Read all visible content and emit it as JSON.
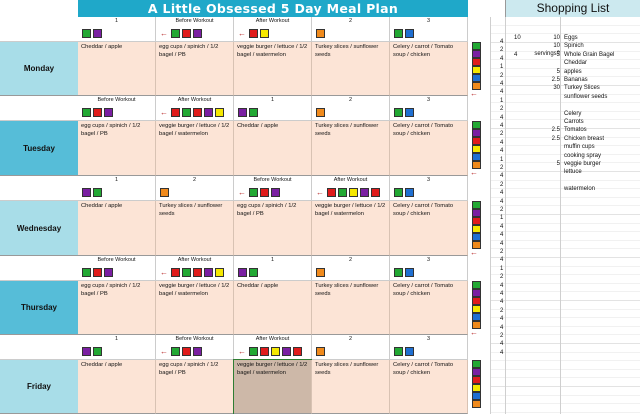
{
  "title": "A Little Obsessed 5 Day Meal Plan",
  "shopping_title": "Shopping List",
  "colors": {
    "G": "#22a833",
    "P": "#7a1fa2",
    "R": "#e01b1b",
    "Y": "#f5e800",
    "B": "#1f6fd1",
    "O": "#f08a1c"
  },
  "days": [
    {
      "name": "Monday",
      "headers": [
        "1",
        "Before Workout",
        "After Workout",
        "2",
        "3"
      ],
      "squares": [
        [
          "G",
          "P"
        ],
        [
          "G",
          "R",
          "P"
        ],
        [
          "R",
          "Y"
        ],
        [
          "O"
        ],
        [
          "G",
          "B"
        ]
      ],
      "arrows": [
        false,
        true,
        true,
        false,
        false
      ],
      "meals": [
        "Cheddar / apple",
        "egg cups / spinich / 1/2 bagel / PB",
        "veggie burger / lettuce / 1/2 bagel / watermelon",
        "Turkey slices / sunflower seeds",
        "Celery / carrot / Tomato soup / chicken"
      ]
    },
    {
      "name": "Tuesday",
      "headers": [
        "Before Workout",
        "After Workout",
        "1",
        "2",
        "3"
      ],
      "squares": [
        [
          "G",
          "R",
          "P"
        ],
        [
          "R",
          "G",
          "R",
          "P",
          "Y"
        ],
        [
          "P",
          "G"
        ],
        [
          "O"
        ],
        [
          "G",
          "B"
        ]
      ],
      "arrows": [
        false,
        true,
        false,
        false,
        false
      ],
      "meals": [
        "egg cups / spinich / 1/2 bagel / PB",
        "veggie burger / lettuce / 1/2 bagel / watermelon",
        "Cheddar / apple",
        "Turkey slices / sunflower seeds",
        "Celery / carrot / Tomato soup / chicken"
      ]
    },
    {
      "name": "Wednesday",
      "headers": [
        "1",
        "2",
        "Before Workout",
        "After Workout",
        "3"
      ],
      "squares": [
        [
          "P",
          "G"
        ],
        [
          "O"
        ],
        [
          "G",
          "R",
          "P"
        ],
        [
          "R",
          "G",
          "Y",
          "P",
          "R"
        ],
        [
          "G",
          "B"
        ]
      ],
      "arrows": [
        false,
        false,
        true,
        true,
        false
      ],
      "meals": [
        "Cheddar / apple",
        "Turkey slices / sunflower seeds",
        "egg cups / spinich / 1/2 bagel / PB",
        "veggie burger / lettuce / 1/2 bagel / watermelon",
        "Celery / carrot / Tomato soup / chicken"
      ]
    },
    {
      "name": "Thursday",
      "headers": [
        "Before Workout",
        "After Workout",
        "1",
        "2",
        "3"
      ],
      "squares": [
        [
          "G",
          "R",
          "P"
        ],
        [
          "R",
          "G",
          "R",
          "P",
          "Y"
        ],
        [
          "P",
          "G"
        ],
        [
          "O"
        ],
        [
          "G",
          "B"
        ]
      ],
      "arrows": [
        false,
        true,
        false,
        false,
        false
      ],
      "meals": [
        "egg cups / spinich / 1/2 bagel / PB",
        "veggie burger / lettuce / 1/2 bagel / watermelon",
        "Cheddar / apple",
        "Turkey slices / sunflower seeds",
        "Celery / carrot / Tomato soup / chicken"
      ]
    },
    {
      "name": "Friday",
      "headers": [
        "1",
        "Before Workout",
        "After Workout",
        "2",
        "3"
      ],
      "squares": [
        [
          "P",
          "G"
        ],
        [
          "G",
          "R",
          "P"
        ],
        [
          "G",
          "R",
          "Y",
          "P",
          "R"
        ],
        [
          "O"
        ],
        [
          "G",
          "B"
        ]
      ],
      "arrows": [
        false,
        true,
        true,
        false,
        false
      ],
      "meals": [
        "Cheddar / apple",
        "egg cups / spinich / 1/2 bagel / PB",
        "veggie burger / lettuce / 1/2 bagel / watermelon",
        "Turkey slices / sunflower seeds",
        "Celery / carrot / Tomato soup / chicken"
      ]
    }
  ],
  "side_squares": [
    [
      "G",
      "P",
      "R",
      "Y",
      "B",
      "O",
      "arrow"
    ],
    [
      "G",
      "P",
      "R",
      "Y",
      "B",
      "O",
      "arrow"
    ],
    [
      "G",
      "P",
      "R",
      "Y",
      "B",
      "O",
      "arrow"
    ],
    [
      "G",
      "P",
      "R",
      "Y",
      "B",
      "O",
      "arrow"
    ],
    [
      "G",
      "P",
      "R",
      "Y",
      "B",
      "O"
    ]
  ],
  "counts": [
    "4",
    "2",
    "4",
    "1",
    "2",
    "4",
    "4",
    "1",
    "2",
    "4",
    "4",
    "2",
    "4",
    "4",
    "1",
    "2",
    "4",
    "2",
    "4",
    "4",
    "2",
    "1",
    "4",
    "4",
    "4",
    "2",
    "4",
    "1",
    "2",
    "4",
    "4",
    "4",
    "2",
    "4",
    "4",
    "2",
    "4",
    "4"
  ],
  "shopping": [
    {
      "qty": "10",
      "per": "10",
      "item": "Eggs"
    },
    {
      "qty": "",
      "per": "10 servings?",
      "item": "Spinich"
    },
    {
      "qty": "4",
      "per": "5",
      "item": "Whole Grain Bagel"
    },
    {
      "qty": "",
      "per": "",
      "item": "Cheddar"
    },
    {
      "qty": "",
      "per": "5",
      "item": "apples"
    },
    {
      "qty": "",
      "per": "2.5",
      "item": "Bananas"
    },
    {
      "qty": "",
      "per": "30",
      "item": "Turkey Slices"
    },
    {
      "qty": "",
      "per": "",
      "item": "sunflower seeds"
    },
    {
      "qty": "",
      "per": "",
      "item": ""
    },
    {
      "qty": "",
      "per": "",
      "item": "Celery"
    },
    {
      "qty": "",
      "per": "",
      "item": "Carrots"
    },
    {
      "qty": "",
      "per": "2.5",
      "item": "Tomatos"
    },
    {
      "qty": "",
      "per": "2.5",
      "item": "Chicken breast"
    },
    {
      "qty": "",
      "per": "",
      "item": "muffin cups"
    },
    {
      "qty": "",
      "per": "",
      "item": "cooking spray"
    },
    {
      "qty": "",
      "per": "5",
      "item": "veggie burger"
    },
    {
      "qty": "",
      "per": "",
      "item": "lettuce"
    },
    {
      "qty": "",
      "per": "",
      "item": ""
    },
    {
      "qty": "",
      "per": "",
      "item": "watermelon"
    }
  ]
}
